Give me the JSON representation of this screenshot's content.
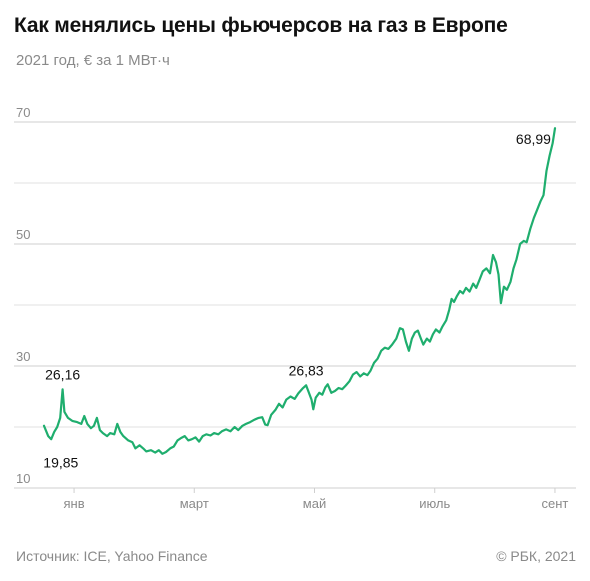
{
  "header": {
    "title": "Как менялись цены фьючерсов на газ в Европе",
    "subtitle": "2021 год, € за 1 МВт·ч"
  },
  "footer": {
    "source": "Источник: ICE, Yahoo Finance",
    "copyright": "© РБК, 2021"
  },
  "colors": {
    "line": "#1fae6e",
    "grid": "#d4d4d4",
    "axis_text": "#8a8a8a"
  },
  "chart_data": {
    "type": "line",
    "title": "Как менялись цены фьючерсов на газ в Европе",
    "subtitle": "2021 год, € за 1 МВт·ч",
    "xlabel": "",
    "ylabel": "",
    "ylim": [
      10,
      70
    ],
    "xlim": [
      0,
      8.85
    ],
    "y_ticks": [
      10,
      30,
      50,
      70
    ],
    "x_ticks": [
      {
        "label": "янв",
        "x": 0.5
      },
      {
        "label": "март",
        "x": 2.5
      },
      {
        "label": "май",
        "x": 4.5
      },
      {
        "label": "июль",
        "x": 6.5
      },
      {
        "label": "сент",
        "x": 8.5
      }
    ],
    "grid": "horizontal",
    "series": [
      {
        "values": [
          [
            0.0,
            20.2
          ],
          [
            0.07,
            18.5
          ],
          [
            0.12,
            18.0
          ],
          [
            0.17,
            19.2
          ],
          [
            0.22,
            20.0
          ],
          [
            0.27,
            21.5
          ],
          [
            0.31,
            26.16
          ],
          [
            0.34,
            22.5
          ],
          [
            0.4,
            21.5
          ],
          [
            0.47,
            21.0
          ],
          [
            0.55,
            20.8
          ],
          [
            0.62,
            20.5
          ],
          [
            0.67,
            21.8
          ],
          [
            0.72,
            20.5
          ],
          [
            0.78,
            19.8
          ],
          [
            0.83,
            20.2
          ],
          [
            0.88,
            21.5
          ],
          [
            0.93,
            19.5
          ],
          [
            0.98,
            19.0
          ],
          [
            1.05,
            18.5
          ],
          [
            1.1,
            19.0
          ],
          [
            1.17,
            18.8
          ],
          [
            1.22,
            20.5
          ],
          [
            1.27,
            19.2
          ],
          [
            1.32,
            18.5
          ],
          [
            1.4,
            17.8
          ],
          [
            1.47,
            17.5
          ],
          [
            1.52,
            16.5
          ],
          [
            1.59,
            17.0
          ],
          [
            1.65,
            16.5
          ],
          [
            1.7,
            16.0
          ],
          [
            1.78,
            16.2
          ],
          [
            1.85,
            15.8
          ],
          [
            1.91,
            16.2
          ],
          [
            1.97,
            15.6
          ],
          [
            2.03,
            15.9
          ],
          [
            2.1,
            16.5
          ],
          [
            2.16,
            16.8
          ],
          [
            2.22,
            17.8
          ],
          [
            2.28,
            18.2
          ],
          [
            2.34,
            18.5
          ],
          [
            2.4,
            17.8
          ],
          [
            2.46,
            18.0
          ],
          [
            2.52,
            18.3
          ],
          [
            2.58,
            17.6
          ],
          [
            2.64,
            18.5
          ],
          [
            2.7,
            18.8
          ],
          [
            2.77,
            18.6
          ],
          [
            2.83,
            19.0
          ],
          [
            2.9,
            18.8
          ],
          [
            2.96,
            19.3
          ],
          [
            3.03,
            19.6
          ],
          [
            3.1,
            19.3
          ],
          [
            3.17,
            20.0
          ],
          [
            3.23,
            19.5
          ],
          [
            3.3,
            20.2
          ],
          [
            3.36,
            20.5
          ],
          [
            3.43,
            20.8
          ],
          [
            3.5,
            21.2
          ],
          [
            3.57,
            21.5
          ],
          [
            3.63,
            21.6
          ],
          [
            3.68,
            20.4
          ],
          [
            3.72,
            20.3
          ],
          [
            3.78,
            22.0
          ],
          [
            3.85,
            22.8
          ],
          [
            3.91,
            23.8
          ],
          [
            3.97,
            23.2
          ],
          [
            4.03,
            24.5
          ],
          [
            4.1,
            25.0
          ],
          [
            4.17,
            24.6
          ],
          [
            4.23,
            25.5
          ],
          [
            4.3,
            26.3
          ],
          [
            4.36,
            26.83
          ],
          [
            4.4,
            25.8
          ],
          [
            4.45,
            24.5
          ],
          [
            4.48,
            22.9
          ],
          [
            4.52,
            24.8
          ],
          [
            4.58,
            25.6
          ],
          [
            4.63,
            25.3
          ],
          [
            4.68,
            26.5
          ],
          [
            4.72,
            27.0
          ],
          [
            4.78,
            25.6
          ],
          [
            4.84,
            25.9
          ],
          [
            4.9,
            26.4
          ],
          [
            4.96,
            26.2
          ],
          [
            5.02,
            26.8
          ],
          [
            5.08,
            27.5
          ],
          [
            5.14,
            28.6
          ],
          [
            5.2,
            29.0
          ],
          [
            5.26,
            28.3
          ],
          [
            5.32,
            28.8
          ],
          [
            5.38,
            28.5
          ],
          [
            5.43,
            29.2
          ],
          [
            5.49,
            30.5
          ],
          [
            5.55,
            31.2
          ],
          [
            5.61,
            32.5
          ],
          [
            5.67,
            33.0
          ],
          [
            5.73,
            32.8
          ],
          [
            5.79,
            33.5
          ],
          [
            5.86,
            34.5
          ],
          [
            5.92,
            36.2
          ],
          [
            5.97,
            36.0
          ],
          [
            6.02,
            34.0
          ],
          [
            6.07,
            32.5
          ],
          [
            6.12,
            34.5
          ],
          [
            6.17,
            35.5
          ],
          [
            6.22,
            35.8
          ],
          [
            6.27,
            34.5
          ],
          [
            6.31,
            33.5
          ],
          [
            6.37,
            34.5
          ],
          [
            6.42,
            34.0
          ],
          [
            6.47,
            35.2
          ],
          [
            6.52,
            36.0
          ],
          [
            6.58,
            35.5
          ],
          [
            6.63,
            36.5
          ],
          [
            6.69,
            37.5
          ],
          [
            6.74,
            39.2
          ],
          [
            6.78,
            41.0
          ],
          [
            6.82,
            40.5
          ],
          [
            6.87,
            41.5
          ],
          [
            6.92,
            42.3
          ],
          [
            6.97,
            41.9
          ],
          [
            7.02,
            42.8
          ],
          [
            7.08,
            42.2
          ],
          [
            7.14,
            43.5
          ],
          [
            7.19,
            42.8
          ],
          [
            7.24,
            44.0
          ],
          [
            7.3,
            45.5
          ],
          [
            7.36,
            46.0
          ],
          [
            7.42,
            45.2
          ],
          [
            7.47,
            48.2
          ],
          [
            7.52,
            47.0
          ],
          [
            7.56,
            45.0
          ],
          [
            7.6,
            40.3
          ],
          [
            7.65,
            43.0
          ],
          [
            7.7,
            42.5
          ],
          [
            7.76,
            43.8
          ],
          [
            7.81,
            46.0
          ],
          [
            7.86,
            47.5
          ],
          [
            7.92,
            50.0
          ],
          [
            7.98,
            50.5
          ],
          [
            8.03,
            50.3
          ],
          [
            8.09,
            52.5
          ],
          [
            8.15,
            54.3
          ],
          [
            8.2,
            55.5
          ],
          [
            8.26,
            57.0
          ],
          [
            8.31,
            58.0
          ],
          [
            8.36,
            62.0
          ],
          [
            8.41,
            64.5
          ],
          [
            8.46,
            66.5
          ],
          [
            8.5,
            68.99
          ]
        ]
      }
    ],
    "annotations": [
      {
        "text": "26,16",
        "x": 0.31,
        "y": 26.16,
        "pos": "above"
      },
      {
        "text": "19,85",
        "x": 0.28,
        "y": 17.0,
        "pos": "below"
      },
      {
        "text": "26,83",
        "x": 4.36,
        "y": 26.83,
        "pos": "above"
      },
      {
        "text": "68,99",
        "x": 8.5,
        "y": 68.99,
        "pos": "left"
      }
    ]
  }
}
